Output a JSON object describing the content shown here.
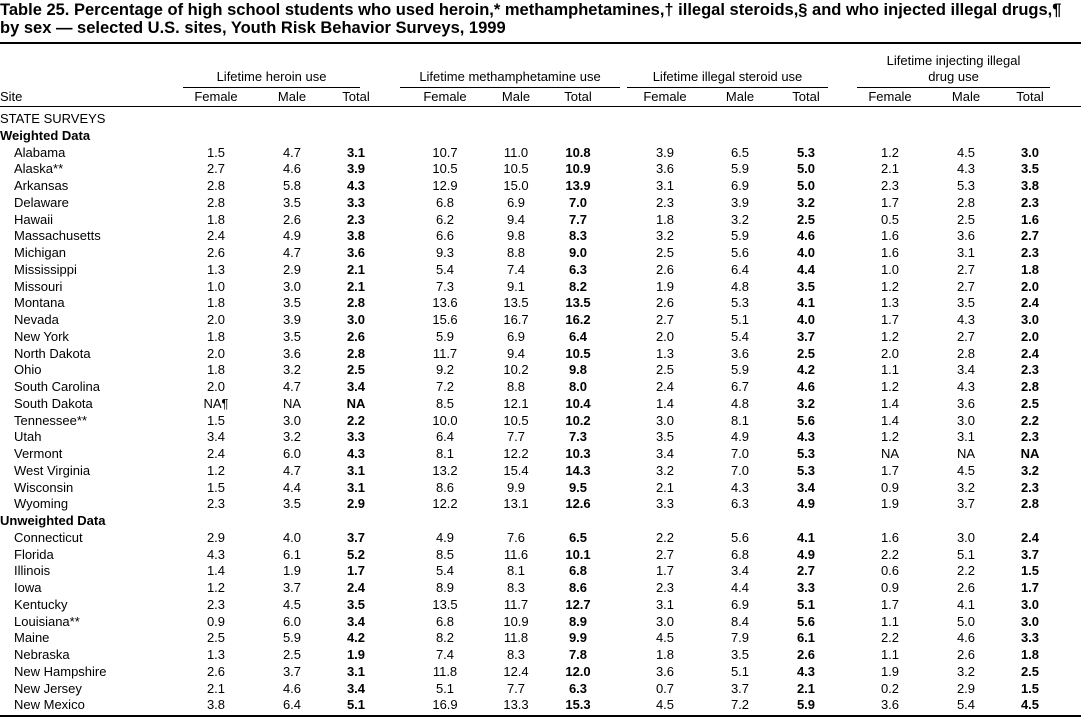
{
  "title": "Table 25. Percentage of high school students who used heroin,* methamphetamines,† illegal steroids,§ and who injected illegal drugs,¶ by sex — selected U.S. sites, Youth Risk Behavior Surveys, 1999",
  "column_groups": [
    "Lifetime heroin use",
    "Lifetime methamphetamine use",
    "Lifetime illegal steroid use",
    "Lifetime injecting illegal drug use"
  ],
  "columns": [
    "Site",
    "Female",
    "Male",
    "Total",
    "Female",
    "Male",
    "Total",
    "Female",
    "Male",
    "Total",
    "Female",
    "Male",
    "Total"
  ],
  "heading": "STATE SURVEYS",
  "sections": [
    {
      "label": "Weighted Data",
      "rows": [
        [
          "Alabama",
          "1.5",
          "4.7",
          "3.1",
          "10.7",
          "11.0",
          "10.8",
          "3.9",
          "6.5",
          "5.3",
          "1.2",
          "4.5",
          "3.0"
        ],
        [
          "Alaska**",
          "2.7",
          "4.6",
          "3.9",
          "10.5",
          "10.5",
          "10.9",
          "3.6",
          "5.9",
          "5.0",
          "2.1",
          "4.3",
          "3.5"
        ],
        [
          "Arkansas",
          "2.8",
          "5.8",
          "4.3",
          "12.9",
          "15.0",
          "13.9",
          "3.1",
          "6.9",
          "5.0",
          "2.3",
          "5.3",
          "3.8"
        ],
        [
          "Delaware",
          "2.8",
          "3.5",
          "3.3",
          "6.8",
          "6.9",
          "7.0",
          "2.3",
          "3.9",
          "3.2",
          "1.7",
          "2.8",
          "2.3"
        ],
        [
          "Hawaii",
          "1.8",
          "2.6",
          "2.3",
          "6.2",
          "9.4",
          "7.7",
          "1.8",
          "3.2",
          "2.5",
          "0.5",
          "2.5",
          "1.6"
        ],
        [
          "Massachusetts",
          "2.4",
          "4.9",
          "3.8",
          "6.6",
          "9.8",
          "8.3",
          "3.2",
          "5.9",
          "4.6",
          "1.6",
          "3.6",
          "2.7"
        ],
        [
          "Michigan",
          "2.6",
          "4.7",
          "3.6",
          "9.3",
          "8.8",
          "9.0",
          "2.5",
          "5.6",
          "4.0",
          "1.6",
          "3.1",
          "2.3"
        ],
        [
          "Mississippi",
          "1.3",
          "2.9",
          "2.1",
          "5.4",
          "7.4",
          "6.3",
          "2.6",
          "6.4",
          "4.4",
          "1.0",
          "2.7",
          "1.8"
        ],
        [
          "Missouri",
          "1.0",
          "3.0",
          "2.1",
          "7.3",
          "9.1",
          "8.2",
          "1.9",
          "4.8",
          "3.5",
          "1.2",
          "2.7",
          "2.0"
        ],
        [
          "Montana",
          "1.8",
          "3.5",
          "2.8",
          "13.6",
          "13.5",
          "13.5",
          "2.6",
          "5.3",
          "4.1",
          "1.3",
          "3.5",
          "2.4"
        ],
        [
          "Nevada",
          "2.0",
          "3.9",
          "3.0",
          "15.6",
          "16.7",
          "16.2",
          "2.7",
          "5.1",
          "4.0",
          "1.7",
          "4.3",
          "3.0"
        ],
        [
          "New York",
          "1.8",
          "3.5",
          "2.6",
          "5.9",
          "6.9",
          "6.4",
          "2.0",
          "5.4",
          "3.7",
          "1.2",
          "2.7",
          "2.0"
        ],
        [
          "North Dakota",
          "2.0",
          "3.6",
          "2.8",
          "11.7",
          "9.4",
          "10.5",
          "1.3",
          "3.6",
          "2.5",
          "2.0",
          "2.8",
          "2.4"
        ],
        [
          "Ohio",
          "1.8",
          "3.2",
          "2.5",
          "9.2",
          "10.2",
          "9.8",
          "2.5",
          "5.9",
          "4.2",
          "1.1",
          "3.4",
          "2.3"
        ],
        [
          "South Carolina",
          "2.0",
          "4.7",
          "3.4",
          "7.2",
          "8.8",
          "8.0",
          "2.4",
          "6.7",
          "4.6",
          "1.2",
          "4.3",
          "2.8"
        ],
        [
          "South Dakota",
          "NA¶",
          "NA",
          "NA",
          "8.5",
          "12.1",
          "10.4",
          "1.4",
          "4.8",
          "3.2",
          "1.4",
          "3.6",
          "2.5"
        ],
        [
          "Tennessee**",
          "1.5",
          "3.0",
          "2.2",
          "10.0",
          "10.5",
          "10.2",
          "3.0",
          "8.1",
          "5.6",
          "1.4",
          "3.0",
          "2.2"
        ],
        [
          "Utah",
          "3.4",
          "3.2",
          "3.3",
          "6.4",
          "7.7",
          "7.3",
          "3.5",
          "4.9",
          "4.3",
          "1.2",
          "3.1",
          "2.3"
        ],
        [
          "Vermont",
          "2.4",
          "6.0",
          "4.3",
          "8.1",
          "12.2",
          "10.3",
          "3.4",
          "7.0",
          "5.3",
          "NA",
          "NA",
          "NA"
        ],
        [
          "West Virginia",
          "1.2",
          "4.7",
          "3.1",
          "13.2",
          "15.4",
          "14.3",
          "3.2",
          "7.0",
          "5.3",
          "1.7",
          "4.5",
          "3.2"
        ],
        [
          "Wisconsin",
          "1.5",
          "4.4",
          "3.1",
          "8.6",
          "9.9",
          "9.5",
          "2.1",
          "4.3",
          "3.4",
          "0.9",
          "3.2",
          "2.3"
        ],
        [
          "Wyoming",
          "2.3",
          "3.5",
          "2.9",
          "12.2",
          "13.1",
          "12.6",
          "3.3",
          "6.3",
          "4.9",
          "1.9",
          "3.7",
          "2.8"
        ]
      ]
    },
    {
      "label": "Unweighted Data",
      "rows": [
        [
          "Connecticut",
          "2.9",
          "4.0",
          "3.7",
          "4.9",
          "7.6",
          "6.5",
          "2.2",
          "5.6",
          "4.1",
          "1.6",
          "3.0",
          "2.4"
        ],
        [
          "Florida",
          "4.3",
          "6.1",
          "5.2",
          "8.5",
          "11.6",
          "10.1",
          "2.7",
          "6.8",
          "4.9",
          "2.2",
          "5.1",
          "3.7"
        ],
        [
          "Illinois",
          "1.4",
          "1.9",
          "1.7",
          "5.4",
          "8.1",
          "6.8",
          "1.7",
          "3.4",
          "2.7",
          "0.6",
          "2.2",
          "1.5"
        ],
        [
          "Iowa",
          "1.2",
          "3.7",
          "2.4",
          "8.9",
          "8.3",
          "8.6",
          "2.3",
          "4.4",
          "3.3",
          "0.9",
          "2.6",
          "1.7"
        ],
        [
          "Kentucky",
          "2.3",
          "4.5",
          "3.5",
          "13.5",
          "11.7",
          "12.7",
          "3.1",
          "6.9",
          "5.1",
          "1.7",
          "4.1",
          "3.0"
        ],
        [
          "Louisiana**",
          "0.9",
          "6.0",
          "3.4",
          "6.8",
          "10.9",
          "8.9",
          "3.0",
          "8.4",
          "5.6",
          "1.1",
          "5.0",
          "3.0"
        ],
        [
          "Maine",
          "2.5",
          "5.9",
          "4.2",
          "8.2",
          "11.8",
          "9.9",
          "4.5",
          "7.9",
          "6.1",
          "2.2",
          "4.6",
          "3.3"
        ],
        [
          "Nebraska",
          "1.3",
          "2.5",
          "1.9",
          "7.4",
          "8.3",
          "7.8",
          "1.8",
          "3.5",
          "2.6",
          "1.1",
          "2.6",
          "1.8"
        ],
        [
          "New Hampshire",
          "2.6",
          "3.7",
          "3.1",
          "11.8",
          "12.4",
          "12.0",
          "3.6",
          "5.1",
          "4.3",
          "1.9",
          "3.2",
          "2.5"
        ],
        [
          "New Jersey",
          "2.1",
          "4.6",
          "3.4",
          "5.1",
          "7.7",
          "6.3",
          "0.7",
          "3.7",
          "2.1",
          "0.2",
          "2.9",
          "1.5"
        ],
        [
          "New Mexico",
          "3.8",
          "6.4",
          "5.1",
          "16.9",
          "13.3",
          "15.3",
          "4.5",
          "7.2",
          "5.9",
          "3.6",
          "5.4",
          "4.5"
        ]
      ]
    }
  ]
}
